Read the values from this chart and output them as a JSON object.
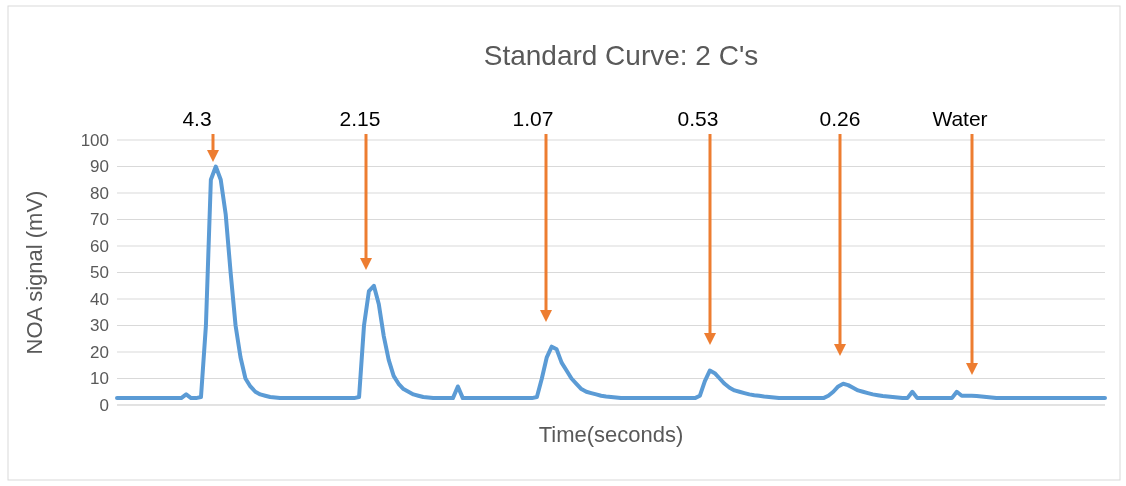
{
  "chart_data": {
    "type": "line",
    "title": "Standard Curve: 2 C's",
    "xlabel": "Time(seconds)",
    "ylabel": "NOA signal (mV)",
    "categories": [
      null,
      null,
      null,
      null,
      null,
      null,
      null,
      null,
      null,
      null,
      null,
      null,
      null,
      null,
      null,
      null,
      null,
      null,
      null,
      null,
      null,
      null,
      null,
      null,
      null,
      null,
      null,
      null,
      null,
      null,
      null,
      null,
      null,
      null,
      null,
      null,
      null,
      null,
      null,
      null,
      null,
      null,
      null,
      null,
      null,
      null,
      null,
      null,
      null,
      null,
      null,
      null,
      null,
      null,
      null,
      null,
      null,
      null,
      null,
      null,
      null,
      null,
      null,
      null,
      null,
      null,
      null,
      null,
      null,
      null,
      null,
      null,
      null,
      null,
      null,
      null,
      null,
      null,
      null,
      null,
      null,
      null,
      null,
      null,
      null,
      null,
      null,
      null,
      null,
      null,
      null,
      null,
      null,
      null,
      null,
      null,
      null,
      null,
      null,
      null,
      null,
      null,
      null,
      null,
      null,
      null,
      null,
      null,
      null,
      null,
      null,
      null,
      null,
      null,
      null,
      null,
      null,
      null,
      null,
      null,
      null,
      null,
      null,
      null,
      null,
      null,
      null,
      null,
      null,
      null,
      null,
      null,
      null,
      null,
      null,
      null,
      null,
      null,
      null,
      null,
      null,
      null,
      null,
      null,
      null,
      null,
      null,
      null,
      null,
      null,
      null,
      null,
      null,
      null,
      null,
      null,
      null,
      null,
      null,
      null,
      null,
      null,
      null,
      null,
      null,
      null,
      null,
      null,
      null,
      null,
      null,
      null,
      null,
      null,
      null,
      null,
      null,
      null,
      null,
      null,
      null,
      null,
      null,
      null,
      null,
      null,
      null,
      null,
      null,
      null,
      null,
      null,
      null,
      null,
      null,
      null,
      null,
      null,
      null,
      null,
      null
    ],
    "ylim": [
      0,
      100
    ],
    "yticks": [
      0,
      10,
      20,
      30,
      40,
      50,
      60,
      70,
      80,
      90,
      100
    ],
    "tick_labels": "y",
    "grid": "y",
    "marker": "none",
    "line_style": "solid",
    "series": [
      {
        "color": "#5b9bd5",
        "values": [
          2.6,
          2.6,
          2.6,
          2.6,
          2.6,
          2.6,
          2.6,
          2.6,
          2.6,
          2.6,
          2.6,
          2.6,
          2.6,
          2.6,
          4,
          2.6,
          2.6,
          3,
          30,
          85,
          90,
          85,
          72,
          50,
          30,
          18,
          10,
          7,
          5,
          4,
          3.5,
          3,
          2.8,
          2.6,
          2.6,
          2.6,
          2.6,
          2.6,
          2.6,
          2.6,
          2.6,
          2.6,
          2.6,
          2.6,
          2.6,
          2.6,
          2.6,
          2.6,
          2.6,
          3,
          30,
          43,
          45,
          38,
          26,
          17,
          11,
          8,
          6,
          5,
          4,
          3.5,
          3,
          2.8,
          2.6,
          2.6,
          2.6,
          2.6,
          2.6,
          7,
          2.6,
          2.6,
          2.6,
          2.6,
          2.6,
          2.6,
          2.6,
          2.6,
          2.6,
          2.6,
          2.6,
          2.6,
          2.6,
          2.6,
          2.6,
          3,
          10,
          18,
          22,
          21,
          16,
          13,
          10,
          8,
          6,
          5,
          4.5,
          4,
          3.5,
          3.2,
          3,
          2.8,
          2.6,
          2.6,
          2.6,
          2.6,
          2.6,
          2.6,
          2.6,
          2.6,
          2.6,
          2.6,
          2.6,
          2.6,
          2.6,
          2.6,
          2.6,
          2.6,
          3.5,
          9,
          13,
          12,
          10,
          8,
          6.5,
          5.5,
          5,
          4.5,
          4,
          3.7,
          3.5,
          3.2,
          3,
          2.8,
          2.6,
          2.6,
          2.6,
          2.6,
          2.6,
          2.6,
          2.6,
          2.6,
          2.6,
          2.6,
          3.5,
          5,
          7,
          8,
          7.5,
          6.5,
          5.5,
          5,
          4.5,
          4,
          3.7,
          3.4,
          3.2,
          3,
          2.8,
          2.6,
          2.6,
          5,
          2.6,
          2.6,
          2.6,
          2.6,
          2.6,
          2.6,
          2.6,
          2.6,
          5,
          3.5,
          3.5,
          3.5,
          3.4,
          3.2,
          3,
          2.8,
          2.6,
          2.6,
          2.6,
          2.6,
          2.6,
          2.6,
          2.6,
          2.6,
          2.6,
          2.6,
          2.6,
          2.6,
          2.6,
          2.6,
          2.6,
          2.6,
          2.6,
          2.6,
          2.6,
          2.6,
          2.6,
          2.6,
          2.6
        ]
      }
    ],
    "annotations": [
      "4.3",
      "2.15",
      "1.07",
      "0.53",
      "0.26",
      "Water"
    ]
  }
}
